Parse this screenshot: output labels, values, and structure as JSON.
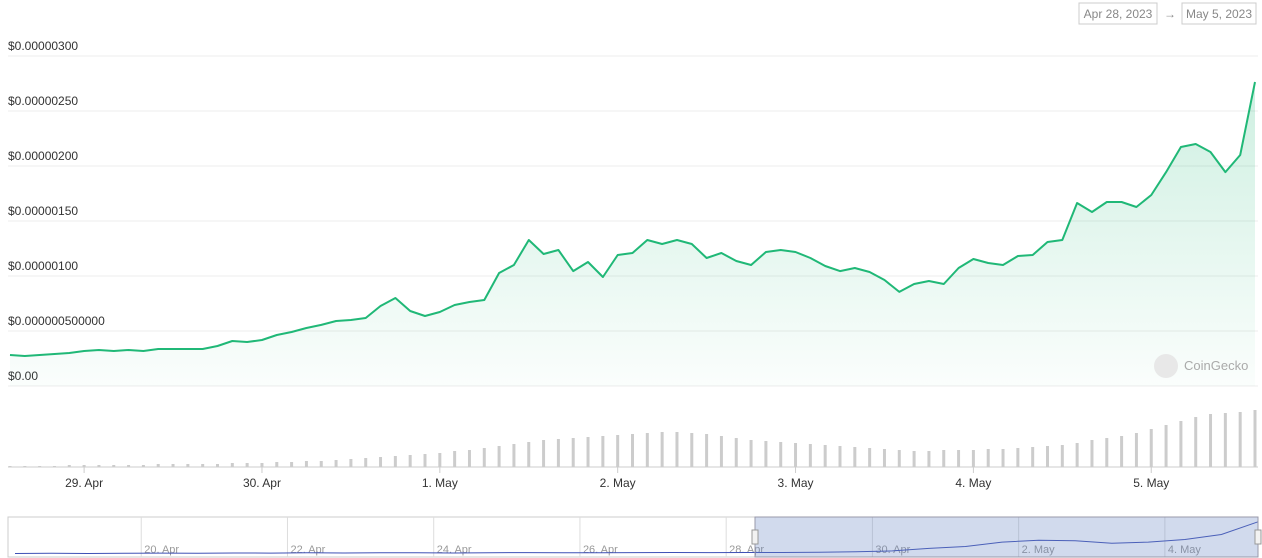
{
  "range_start": "Apr 28, 2023",
  "range_separator": "→",
  "range_end": "May 5, 2023",
  "watermark": "CoinGecko",
  "chart_data": {
    "type": "line",
    "color": "#20b877",
    "grid": true,
    "ylim": [
      0,
      3e-06
    ],
    "yticks": [
      {
        "value": 0,
        "label": "$0.00"
      },
      {
        "value": 5e-07,
        "label": "$0.000000500000"
      },
      {
        "value": 1e-06,
        "label": "$0.00000100"
      },
      {
        "value": 1.5e-06,
        "label": "$0.00000150"
      },
      {
        "value": 2e-06,
        "label": "$0.00000200"
      },
      {
        "value": 2.5e-06,
        "label": "$0.00000250"
      },
      {
        "value": 3e-06,
        "label": "$0.00000300"
      }
    ],
    "categories": [
      null,
      null,
      null,
      null,
      null,
      "29. Apr",
      null,
      null,
      null,
      null,
      null,
      null,
      null,
      null,
      null,
      null,
      null,
      "30. Apr",
      null,
      null,
      null,
      null,
      null,
      null,
      null,
      null,
      null,
      null,
      null,
      "1. May",
      null,
      null,
      null,
      null,
      null,
      null,
      null,
      null,
      null,
      null,
      null,
      "2. May",
      null,
      null,
      null,
      null,
      null,
      null,
      null,
      null,
      null,
      null,
      null,
      "3. May",
      null,
      null,
      null,
      null,
      null,
      null,
      null,
      null,
      null,
      null,
      null,
      "4. May",
      null,
      null,
      null,
      null,
      null,
      null,
      null,
      null,
      null,
      null,
      null,
      "5. May",
      null,
      null,
      null,
      null,
      null,
      null,
      null
    ],
    "values": [
      2.82e-07,
      2.73e-07,
      2.82e-07,
      2.91e-07,
      3e-07,
      3.18e-07,
      3.27e-07,
      3.18e-07,
      3.27e-07,
      3.18e-07,
      3.36e-07,
      3.36e-07,
      3.36e-07,
      3.36e-07,
      3.64e-07,
      4.09e-07,
      4e-07,
      4.18e-07,
      4.64e-07,
      4.91e-07,
      5.27e-07,
      5.55e-07,
      5.91e-07,
      6e-07,
      6.18e-07,
      7.27e-07,
      8e-07,
      6.82e-07,
      6.36e-07,
      6.73e-07,
      7.36e-07,
      7.64e-07,
      7.82e-07,
      1.027e-06,
      1.1e-06,
      1.327e-06,
      1.2e-06,
      1.236e-06,
      1.045e-06,
      1.127e-06,
      9.91e-07,
      1.191e-06,
      1.209e-06,
      1.327e-06,
      1.291e-06,
      1.327e-06,
      1.291e-06,
      1.164e-06,
      1.209e-06,
      1.136e-06,
      1.1e-06,
      1.218e-06,
      1.236e-06,
      1.218e-06,
      1.164e-06,
      1.091e-06,
      1.045e-06,
      1.073e-06,
      1.036e-06,
      9.64e-07,
      8.55e-07,
      9.27e-07,
      9.55e-07,
      9.27e-07,
      1.073e-06,
      1.155e-06,
      1.118e-06,
      1.1e-06,
      1.182e-06,
      1.191e-06,
      1.309e-06,
      1.327e-06,
      1.664e-06,
      1.582e-06,
      1.673e-06,
      1.673e-06,
      1.627e-06,
      1.736e-06,
      1.945e-06,
      2.173e-06,
      2.2e-06,
      2.127e-06,
      1.945e-06,
      2.1e-06,
      2.764e-06
    ],
    "volume_color": "#cccccc",
    "volume_ylim": [
      0,
      60
    ],
    "volume": [
      1,
      1,
      1,
      1,
      2,
      2,
      2,
      2,
      2,
      2,
      3,
      3,
      3,
      3,
      3,
      4,
      4,
      4,
      5,
      5,
      6,
      6,
      7,
      8,
      9,
      10,
      11,
      12,
      13,
      14,
      16,
      17,
      19,
      21,
      23,
      25,
      27,
      28,
      29,
      30,
      31,
      32,
      33,
      34,
      35,
      35,
      34,
      33,
      31,
      29,
      27,
      26,
      25,
      24,
      23,
      22,
      21,
      20,
      19,
      18,
      17,
      16,
      16,
      17,
      17,
      17,
      18,
      18,
      19,
      20,
      21,
      22,
      24,
      27,
      29,
      31,
      34,
      38,
      42,
      46,
      50,
      53,
      54,
      55,
      57
    ],
    "navigator_color": "#3f51b5",
    "navigator_categories": [
      null,
      null,
      null,
      null,
      "20. Apr",
      null,
      null,
      null,
      "22. Apr",
      null,
      null,
      null,
      "24. Apr",
      null,
      null,
      null,
      "26. Apr",
      null,
      null,
      null,
      "28. Apr",
      null,
      null,
      null,
      "30. Apr",
      null,
      null,
      null,
      "2. May",
      null,
      null,
      null,
      "4. May",
      null,
      null
    ],
    "navigator_values": [
      2e-07,
      2.1e-07,
      2e-07,
      2.2e-07,
      2.3e-07,
      2.2e-07,
      2.4e-07,
      2.3e-07,
      2.5e-07,
      2.4e-07,
      2.6e-07,
      2.5e-07,
      2.4e-07,
      2.6e-07,
      2.7e-07,
      2.6e-07,
      2.5e-07,
      2.7e-07,
      2.8e-07,
      2.7e-07,
      2.8e-07,
      2.8e-07,
      3e-07,
      3.4e-07,
      4e-07,
      6e-07,
      7.5e-07,
      1.1e-06,
      1.25e-06,
      1.2e-06,
      1e-06,
      1.1e-06,
      1.3e-06,
      1.7e-06,
      2.7e-06
    ]
  }
}
